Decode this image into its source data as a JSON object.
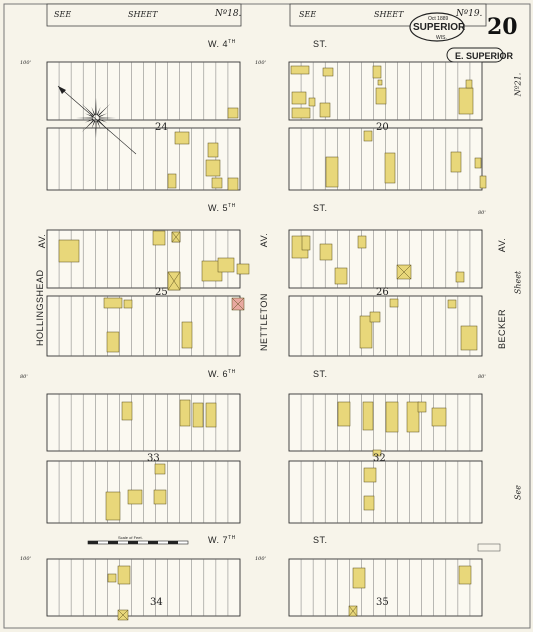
{
  "header": {
    "left_see": "SEE",
    "left_sheet": "SHEET",
    "left_no": "Nº18.",
    "right_see": "SEE",
    "right_sheet": "SHEET",
    "right_no": "Nº19.",
    "stamp_date": "Oct 1889",
    "stamp_city": "SUPERIOR",
    "stamp_state": "WIS.",
    "sheet_number": "20",
    "district": "E. SUPERIOR"
  },
  "streets": {
    "w4": "W. 4",
    "w4_sup": "TH",
    "w4_st": "ST.",
    "w5": "W. 5",
    "w5_sup": "TH",
    "w5_st": "ST.",
    "w6": "W. 6",
    "w6_sup": "TH",
    "w6_st": "ST.",
    "w7": "W. 7",
    "w7_sup": "TH",
    "w7_st": "ST.",
    "hollingshead": "HOLLINGSHEAD",
    "hollingshead_av": "AV.",
    "nettleton": "NETTLETON",
    "nettleton_av": "AV.",
    "becker": "BECKER",
    "becker_av": "AV."
  },
  "blocks": {
    "b24": "24",
    "b20": "20",
    "b25": "25",
    "b26": "26",
    "b33": "33",
    "b32": "32",
    "b34": "34",
    "b35": "35"
  },
  "margin_refs": {
    "no21": "Nº21.",
    "sheet": "Sheet",
    "see": "See"
  },
  "widths": {
    "w100": "100'",
    "w80": "80'"
  },
  "scale_label": "Scale of Feet."
}
